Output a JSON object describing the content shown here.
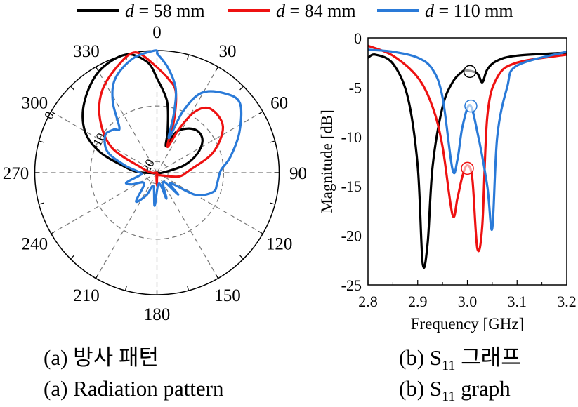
{
  "legend": [
    {
      "var": "d",
      "label": " = 58 mm",
      "color": "#000000"
    },
    {
      "var": "d",
      "label": " = 84 mm",
      "color": "#ee1111"
    },
    {
      "var": "d",
      "label": " = 110 mm",
      "color": "#2a7ad8"
    }
  ],
  "captions": {
    "a_ko": "(a)  방사 패턴",
    "a_en": "(a)  Radiation pattern",
    "b_ko_prefix": "(b)  S",
    "b_ko_sub": "11",
    "b_ko_suffix": "  그래프",
    "b_en_prefix": "(b)  S",
    "b_en_sub": "11",
    "b_en_suffix": "  graph"
  },
  "chart_data": [
    {
      "type": "polar-line",
      "title": "Radiation pattern",
      "angle_ticks": [
        "0",
        "30",
        "60",
        "90",
        "120",
        "150",
        "180",
        "210",
        "240",
        "270",
        "300",
        "330"
      ],
      "radial_ticks": [
        "0",
        "-10",
        "-20"
      ],
      "radial_range": [
        -22,
        0
      ],
      "series": [
        {
          "name": "d = 58 mm",
          "color": "#000000",
          "points": [
            [
              0,
              -5
            ],
            [
              8,
              -9
            ],
            [
              14,
              -14
            ],
            [
              19,
              -17
            ],
            [
              25,
              -14
            ],
            [
              35,
              -12.3
            ],
            [
              45,
              -11.5
            ],
            [
              55,
              -12
            ],
            [
              65,
              -14
            ],
            [
              75,
              -17
            ],
            [
              90,
              -21
            ],
            [
              120,
              -22
            ],
            [
              180,
              -22
            ],
            [
              240,
              -22
            ],
            [
              262,
              -21.5
            ],
            [
              272,
              -18.5
            ],
            [
              281,
              -15.9
            ],
            [
              290,
              -11
            ],
            [
              300,
              -7
            ],
            [
              314,
              -3.8
            ],
            [
              330,
              -1
            ],
            [
              345,
              0
            ],
            [
              355,
              -2
            ],
            [
              360,
              -5
            ]
          ]
        },
        {
          "name": "d = 84 mm",
          "color": "#ee1111",
          "points": [
            [
              0,
              -3
            ],
            [
              7,
              -5
            ],
            [
              13,
              -7
            ],
            [
              18,
              -12
            ],
            [
              22,
              -17
            ],
            [
              27,
              -13
            ],
            [
              32,
              -9
            ],
            [
              40,
              -7
            ],
            [
              55,
              -7.5
            ],
            [
              70,
              -11.2
            ],
            [
              85,
              -16
            ],
            [
              100,
              -18
            ],
            [
              120,
              -21
            ],
            [
              170,
              -21.5
            ],
            [
              180,
              -19.6
            ],
            [
              190,
              -21.5
            ],
            [
              250,
              -22
            ],
            [
              270,
              -21
            ],
            [
              288,
              -19
            ],
            [
              299,
              -12.7
            ],
            [
              313,
              -8
            ],
            [
              326,
              -4.3
            ],
            [
              340,
              -1.5
            ],
            [
              350,
              0
            ],
            [
              360,
              -3
            ]
          ]
        },
        {
          "name": "d = 110 mm",
          "color": "#2a7ad8",
          "points": [
            [
              0,
              -0.5
            ],
            [
              6,
              -3
            ],
            [
              12.6,
              -6.5
            ],
            [
              16,
              -11
            ],
            [
              19,
              -15.4
            ],
            [
              23,
              -10
            ],
            [
              29,
              -5.6
            ],
            [
              40,
              -3.3
            ],
            [
              50,
              -2.5
            ],
            [
              64,
              -5.5
            ],
            [
              78,
              -8.5
            ],
            [
              88,
              -10.5
            ],
            [
              100,
              -11
            ],
            [
              109,
              -11.3
            ],
            [
              120,
              -14
            ],
            [
              128,
              -19
            ],
            [
              136,
              -16.5
            ],
            [
              145,
              -20
            ],
            [
              160,
              -17
            ],
            [
              170,
              -20
            ],
            [
              184,
              -16
            ],
            [
              195,
              -19.5
            ],
            [
              205,
              -17.5
            ],
            [
              216,
              -15.6
            ],
            [
              230,
              -19
            ],
            [
              245,
              -17
            ],
            [
              252,
              -16.2
            ],
            [
              262,
              -19
            ],
            [
              270,
              -19
            ],
            [
              283,
              -16
            ],
            [
              293,
              -12.3
            ],
            [
              306,
              -10.5
            ],
            [
              315,
              -11
            ],
            [
              320,
              -11.5
            ],
            [
              328,
              -7
            ],
            [
              336,
              -3.5
            ],
            [
              348,
              -1
            ],
            [
              359,
              0
            ],
            [
              360,
              -0.5
            ]
          ]
        }
      ]
    },
    {
      "type": "line",
      "title": "S11 graph",
      "xlabel": "Frequency [GHz]",
      "ylabel": "Magnitude [dB]",
      "xlim": [
        2.8,
        3.2
      ],
      "ylim": [
        -25,
        0
      ],
      "xticks": [
        "2.8",
        "2.9",
        "3.0",
        "3.1",
        "3.2"
      ],
      "yticks": [
        "0",
        "-5",
        "-10",
        "-15",
        "-20",
        "-25"
      ],
      "series": [
        {
          "name": "d = 58 mm",
          "color": "#000000",
          "x": [
            2.8,
            2.815,
            2.85,
            2.88,
            2.9,
            2.91,
            2.92,
            2.93,
            2.95,
            2.97,
            2.99,
            3.0,
            3.02,
            3.03,
            3.04,
            3.06,
            3.1,
            3.2
          ],
          "y": [
            -2,
            -1.7,
            -2.6,
            -6,
            -13,
            -22.8,
            -20.8,
            -13,
            -7,
            -4.5,
            -3.4,
            -3.3,
            -3.6,
            -4.5,
            -3.2,
            -2.3,
            -1.8,
            -1.5
          ]
        },
        {
          "name": "d = 84 mm",
          "color": "#ee1111",
          "x": [
            2.8,
            2.85,
            2.9,
            2.93,
            2.95,
            2.97,
            2.98,
            2.99,
            3.0,
            3.01,
            3.02,
            3.03,
            3.04,
            3.06,
            3.1,
            3.2
          ],
          "y": [
            -0.8,
            -1.8,
            -4,
            -7,
            -11,
            -17.9,
            -16.2,
            -14,
            -12.9,
            -14.3,
            -21.3,
            -19,
            -8,
            -4,
            -2.5,
            -1.7
          ]
        },
        {
          "name": "d = 110 mm",
          "color": "#2a7ad8",
          "x": [
            2.8,
            2.85,
            2.9,
            2.93,
            2.95,
            2.97,
            2.98,
            2.99,
            3.005,
            3.02,
            3.04,
            3.05,
            3.06,
            3.08,
            3.1,
            3.2
          ],
          "y": [
            -1.2,
            -1.4,
            -2,
            -3.2,
            -6,
            -13.3,
            -12.3,
            -9,
            -6.8,
            -9.5,
            -15,
            -19.3,
            -10,
            -5,
            -2.8,
            -1.4
          ]
        }
      ],
      "markers": [
        {
          "series": "d = 58 mm",
          "x": 3.005,
          "y": -3.4,
          "color": "#000000"
        },
        {
          "series": "d = 110 mm",
          "x": 3.007,
          "y": -6.9,
          "color": "#2a7ad8"
        },
        {
          "series": "d = 84 mm",
          "x": 3.0,
          "y": -13.2,
          "color": "#ee1111"
        }
      ]
    }
  ]
}
